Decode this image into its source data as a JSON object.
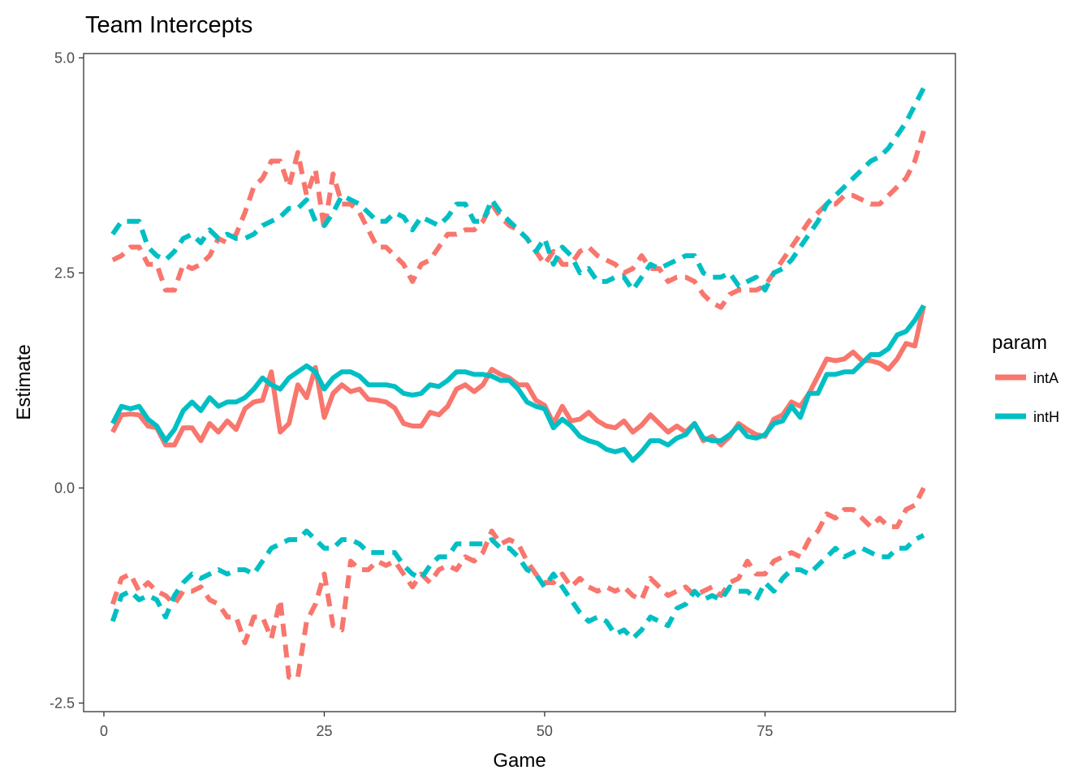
{
  "chart_data": {
    "type": "line",
    "title": "Team Intercepts",
    "xlabel": "Game",
    "ylabel": "Estimate",
    "xlim": [
      -2.3,
      96.6
    ],
    "ylim": [
      -2.6,
      5.05
    ],
    "x_ticks": [
      0,
      25,
      50,
      75
    ],
    "x_tick_labels": [
      "0",
      "25",
      "50",
      "75"
    ],
    "y_ticks": [
      -2.5,
      0.0,
      2.5,
      5.0
    ],
    "y_tick_labels": [
      "-2.5",
      "0.0",
      "2.5",
      "5.0"
    ],
    "grid": false,
    "legend": {
      "title": "param",
      "placement": "right",
      "entries": [
        {
          "label": "intA",
          "color": "#F8766D"
        },
        {
          "label": "intH",
          "color": "#00BFC4"
        }
      ]
    },
    "x": [
      1,
      2,
      3,
      4,
      5,
      6,
      7,
      8,
      9,
      10,
      11,
      12,
      13,
      14,
      15,
      16,
      17,
      18,
      19,
      20,
      21,
      22,
      23,
      24,
      25,
      26,
      27,
      28,
      29,
      30,
      31,
      32,
      33,
      34,
      35,
      36,
      37,
      38,
      39,
      40,
      41,
      42,
      43,
      44,
      45,
      46,
      47,
      48,
      49,
      50,
      51,
      52,
      53,
      54,
      55,
      56,
      57,
      58,
      59,
      60,
      61,
      62,
      63,
      64,
      65,
      66,
      67,
      68,
      69,
      70,
      71,
      72,
      73,
      74,
      75,
      76,
      77,
      78,
      79,
      80,
      81,
      82,
      83,
      84,
      85,
      86,
      87,
      88,
      89,
      90,
      91,
      92,
      93
    ],
    "series": [
      {
        "name": "intA",
        "param": "intA",
        "band": "estimate",
        "color": "#F8766D",
        "values": [
          0.65,
          0.85,
          0.86,
          0.85,
          0.72,
          0.7,
          0.5,
          0.5,
          0.7,
          0.7,
          0.55,
          0.75,
          0.65,
          0.78,
          0.68,
          0.92,
          1.0,
          1.02,
          1.35,
          0.65,
          0.75,
          1.2,
          1.05,
          1.4,
          0.82,
          1.1,
          1.2,
          1.12,
          1.15,
          1.03,
          1.02,
          1.0,
          0.93,
          0.75,
          0.72,
          0.72,
          0.88,
          0.85,
          0.95,
          1.15,
          1.2,
          1.12,
          1.2,
          1.38,
          1.32,
          1.28,
          1.2,
          1.2,
          1.02,
          0.96,
          0.75,
          0.95,
          0.78,
          0.8,
          0.88,
          0.78,
          0.72,
          0.7,
          0.78,
          0.65,
          0.73,
          0.85,
          0.75,
          0.65,
          0.72,
          0.65,
          0.75,
          0.55,
          0.6,
          0.5,
          0.6,
          0.75,
          0.68,
          0.62,
          0.6,
          0.8,
          0.85,
          1.0,
          0.95,
          1.1,
          1.3,
          1.5,
          1.48,
          1.5,
          1.58,
          1.48,
          1.48,
          1.45,
          1.38,
          1.5,
          1.68,
          1.65,
          2.12
        ]
      },
      {
        "name": "intA",
        "param": "intA",
        "band": "upper",
        "color": "#F8766D",
        "values": [
          2.65,
          2.7,
          2.8,
          2.8,
          2.6,
          2.6,
          2.3,
          2.3,
          2.6,
          2.55,
          2.6,
          2.7,
          2.9,
          2.85,
          2.95,
          3.2,
          3.5,
          3.6,
          3.8,
          3.8,
          3.5,
          3.9,
          3.4,
          3.7,
          3.0,
          3.65,
          3.3,
          3.3,
          3.2,
          3.0,
          2.8,
          2.8,
          2.7,
          2.6,
          2.4,
          2.6,
          2.65,
          2.8,
          2.95,
          2.95,
          3.0,
          3.0,
          3.1,
          3.3,
          3.15,
          3.05,
          3.0,
          2.9,
          2.75,
          2.6,
          2.75,
          2.6,
          2.6,
          2.75,
          2.8,
          2.7,
          2.65,
          2.6,
          2.5,
          2.55,
          2.7,
          2.55,
          2.55,
          2.4,
          2.45,
          2.45,
          2.4,
          2.25,
          2.15,
          2.1,
          2.25,
          2.3,
          2.3,
          2.3,
          2.35,
          2.5,
          2.65,
          2.8,
          2.95,
          3.1,
          3.2,
          3.3,
          3.3,
          3.4,
          3.4,
          3.35,
          3.3,
          3.3,
          3.4,
          3.5,
          3.6,
          3.8,
          4.15
        ]
      },
      {
        "name": "intA",
        "param": "intA",
        "band": "lower",
        "color": "#F8766D",
        "values": [
          -1.35,
          -1.05,
          -1.0,
          -1.2,
          -1.1,
          -1.2,
          -1.25,
          -1.35,
          -1.2,
          -1.2,
          -1.15,
          -1.3,
          -1.35,
          -1.5,
          -1.5,
          -1.8,
          -1.5,
          -1.5,
          -1.75,
          -1.3,
          -2.2,
          -2.2,
          -1.55,
          -1.35,
          -1.0,
          -1.6,
          -1.65,
          -0.85,
          -0.95,
          -0.95,
          -0.85,
          -0.9,
          -0.85,
          -1.0,
          -1.15,
          -1.0,
          -1.1,
          -0.95,
          -0.9,
          -0.95,
          -0.8,
          -0.85,
          -0.75,
          -0.5,
          -0.65,
          -0.6,
          -0.65,
          -0.85,
          -1.0,
          -1.1,
          -1.1,
          -1.0,
          -1.15,
          -1.05,
          -1.15,
          -1.2,
          -1.15,
          -1.2,
          -1.15,
          -1.25,
          -1.3,
          -1.05,
          -1.15,
          -1.25,
          -1.2,
          -1.15,
          -1.25,
          -1.2,
          -1.15,
          -1.25,
          -1.1,
          -1.05,
          -0.85,
          -1.0,
          -1.0,
          -0.85,
          -0.8,
          -0.75,
          -0.8,
          -0.6,
          -0.5,
          -0.3,
          -0.35,
          -0.25,
          -0.25,
          -0.35,
          -0.45,
          -0.35,
          -0.45,
          -0.45,
          -0.25,
          -0.2,
          0.0
        ]
      },
      {
        "name": "intH",
        "param": "intH",
        "band": "estimate",
        "color": "#00BFC4",
        "values": [
          0.75,
          0.95,
          0.92,
          0.95,
          0.8,
          0.72,
          0.55,
          0.68,
          0.9,
          1.0,
          0.9,
          1.05,
          0.95,
          1.0,
          1.0,
          1.05,
          1.15,
          1.28,
          1.2,
          1.15,
          1.28,
          1.35,
          1.42,
          1.35,
          1.15,
          1.28,
          1.35,
          1.35,
          1.3,
          1.2,
          1.2,
          1.2,
          1.18,
          1.1,
          1.08,
          1.1,
          1.2,
          1.18,
          1.25,
          1.35,
          1.35,
          1.32,
          1.32,
          1.3,
          1.25,
          1.25,
          1.15,
          1.0,
          0.95,
          0.92,
          0.7,
          0.8,
          0.72,
          0.6,
          0.55,
          0.52,
          0.45,
          0.42,
          0.45,
          0.32,
          0.42,
          0.55,
          0.55,
          0.5,
          0.58,
          0.62,
          0.75,
          0.58,
          0.55,
          0.55,
          0.62,
          0.72,
          0.6,
          0.58,
          0.62,
          0.75,
          0.78,
          0.95,
          0.82,
          1.1,
          1.1,
          1.32,
          1.32,
          1.35,
          1.35,
          1.45,
          1.55,
          1.55,
          1.62,
          1.78,
          1.82,
          1.95,
          2.12
        ]
      },
      {
        "name": "intH",
        "param": "intH",
        "band": "upper",
        "color": "#00BFC4",
        "values": [
          2.95,
          3.1,
          3.1,
          3.1,
          2.8,
          2.7,
          2.65,
          2.75,
          2.9,
          2.95,
          2.85,
          3.0,
          2.9,
          2.95,
          2.9,
          2.9,
          2.95,
          3.05,
          3.1,
          3.15,
          3.25,
          3.25,
          3.35,
          3.1,
          3.05,
          3.2,
          3.4,
          3.35,
          3.3,
          3.2,
          3.1,
          3.1,
          3.2,
          3.15,
          3.0,
          3.15,
          3.1,
          3.05,
          3.15,
          3.3,
          3.3,
          3.1,
          3.1,
          3.35,
          3.2,
          3.1,
          3.0,
          2.9,
          2.75,
          2.9,
          2.6,
          2.8,
          2.7,
          2.5,
          2.55,
          2.4,
          2.4,
          2.45,
          2.45,
          2.3,
          2.45,
          2.6,
          2.55,
          2.6,
          2.65,
          2.7,
          2.7,
          2.5,
          2.45,
          2.45,
          2.5,
          2.35,
          2.4,
          2.45,
          2.3,
          2.5,
          2.55,
          2.65,
          2.8,
          2.95,
          3.1,
          3.3,
          3.4,
          3.5,
          3.6,
          3.7,
          3.8,
          3.85,
          3.95,
          4.1,
          4.25,
          4.45,
          4.65
        ]
      },
      {
        "name": "intH",
        "param": "intH",
        "band": "lower",
        "color": "#00BFC4",
        "values": [
          -1.55,
          -1.25,
          -1.2,
          -1.3,
          -1.25,
          -1.3,
          -1.5,
          -1.25,
          -1.1,
          -1.0,
          -1.05,
          -1.0,
          -0.95,
          -1.0,
          -0.95,
          -0.95,
          -1.0,
          -0.85,
          -0.7,
          -0.65,
          -0.6,
          -0.6,
          -0.5,
          -0.6,
          -0.7,
          -0.7,
          -0.6,
          -0.6,
          -0.65,
          -0.75,
          -0.75,
          -0.75,
          -0.75,
          -0.9,
          -1.0,
          -1.05,
          -0.9,
          -0.8,
          -0.8,
          -0.65,
          -0.65,
          -0.65,
          -0.65,
          -0.6,
          -0.7,
          -0.7,
          -0.8,
          -0.95,
          -1.0,
          -1.15,
          -1.0,
          -1.15,
          -1.3,
          -1.45,
          -1.55,
          -1.5,
          -1.55,
          -1.7,
          -1.65,
          -1.75,
          -1.65,
          -1.5,
          -1.55,
          -1.6,
          -1.4,
          -1.35,
          -1.2,
          -1.3,
          -1.25,
          -1.3,
          -1.15,
          -1.2,
          -1.2,
          -1.3,
          -1.1,
          -1.2,
          -1.05,
          -0.95,
          -0.95,
          -1.0,
          -0.9,
          -0.8,
          -0.7,
          -0.8,
          -0.75,
          -0.7,
          -0.75,
          -0.8,
          -0.8,
          -0.7,
          -0.7,
          -0.6,
          -0.55
        ]
      }
    ]
  }
}
